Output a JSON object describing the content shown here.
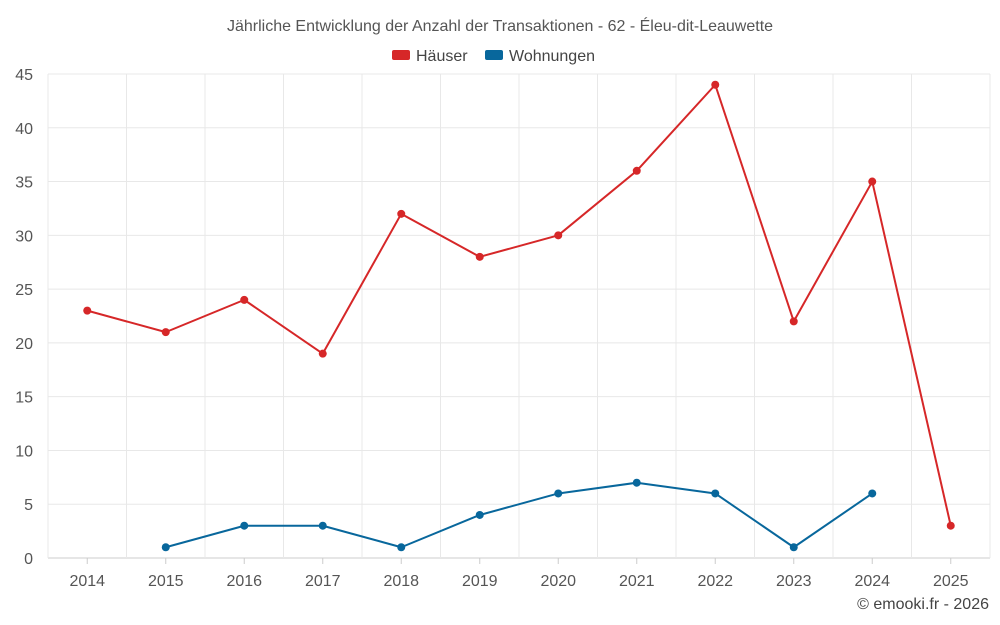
{
  "chart_data": {
    "type": "line",
    "title": "Jährliche Entwicklung der Anzahl der Transaktionen - 62 - Éleu-dit-Leauwette",
    "categories": [
      "2014",
      "2015",
      "2016",
      "2017",
      "2018",
      "2019",
      "2020",
      "2021",
      "2022",
      "2023",
      "2024",
      "2025"
    ],
    "series": [
      {
        "name": "Häuser",
        "color": "#d62728",
        "values": [
          23,
          21,
          24,
          19,
          32,
          28,
          30,
          36,
          44,
          22,
          35,
          3
        ]
      },
      {
        "name": "Wohnungen",
        "color": "#08679c",
        "values": [
          null,
          1,
          3,
          3,
          1,
          4,
          6,
          7,
          6,
          1,
          6,
          null
        ]
      }
    ],
    "yticks": [
      0,
      5,
      10,
      15,
      20,
      25,
      30,
      35,
      40,
      45
    ],
    "ylim": [
      0,
      45
    ],
    "xlabel": "",
    "ylabel": "",
    "grid": true,
    "legend": "top-center"
  },
  "credit": "© emooki.fr - 2026"
}
